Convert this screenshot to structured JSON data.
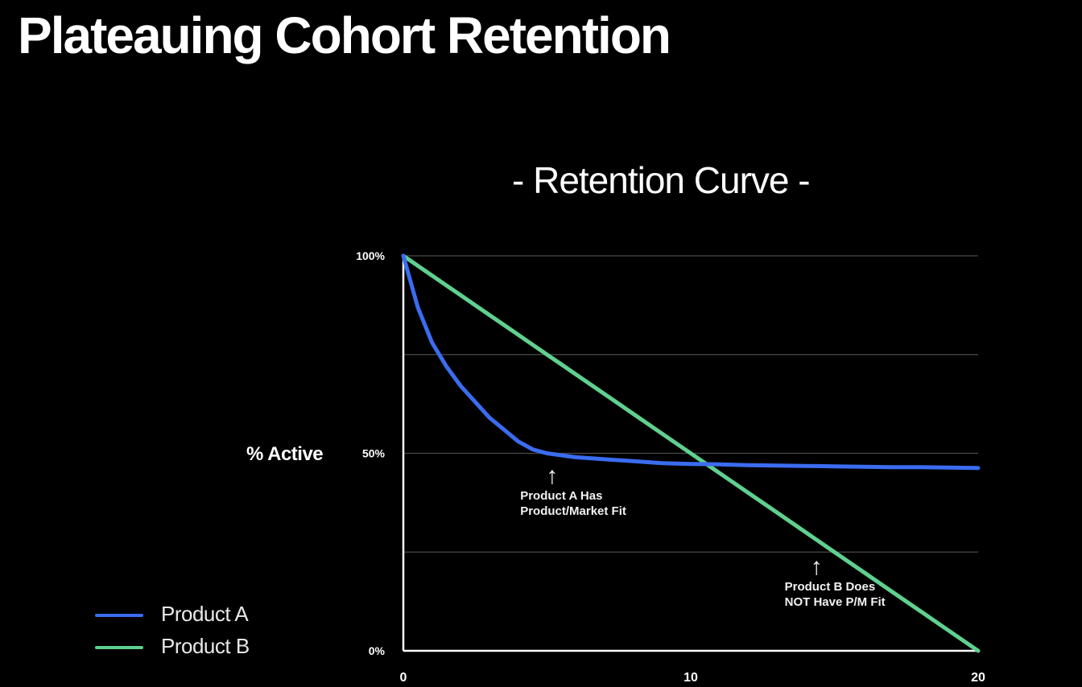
{
  "page": {
    "title": "Plateauing Cohort Retention"
  },
  "chart_data": {
    "type": "line",
    "title": "- Retention Curve -",
    "xlabel": "",
    "ylabel": "% Active",
    "xlim": [
      0,
      20
    ],
    "ylim": [
      0,
      100
    ],
    "x_ticks": [
      "0",
      "10",
      "20"
    ],
    "y_ticks": [
      {
        "value": 100,
        "label": "100%"
      },
      {
        "value": 75,
        "label": ""
      },
      {
        "value": 50,
        "label": "50%"
      },
      {
        "value": 25,
        "label": ""
      },
      {
        "value": 0,
        "label": "0%"
      }
    ],
    "grid": true,
    "legend_position": "bottom-left",
    "x": [
      0,
      0.5,
      1,
      1.5,
      2,
      2.5,
      3,
      3.5,
      4,
      4.5,
      5,
      5.5,
      6,
      7,
      8,
      9,
      10,
      11,
      12,
      13,
      14,
      15,
      16,
      17,
      18,
      19,
      20
    ],
    "series": [
      {
        "name": "Product A",
        "color": "#3b6cf0",
        "values": [
          100,
          87,
          78,
          72,
          67,
          63,
          59,
          56,
          53,
          51,
          50,
          49.5,
          49,
          48.5,
          48,
          47.5,
          47.3,
          47.2,
          47,
          46.9,
          46.8,
          46.7,
          46.6,
          46.5,
          46.5,
          46.4,
          46.3
        ]
      },
      {
        "name": "Product B",
        "color": "#5fd08f",
        "values": [
          100,
          97.5,
          95,
          92.5,
          90,
          87.5,
          85,
          82.5,
          80,
          77.5,
          75,
          72.5,
          70,
          65,
          60,
          55,
          50,
          45,
          40,
          35,
          30,
          25,
          20,
          15,
          10,
          5,
          0
        ]
      }
    ],
    "annotations": [
      {
        "x": 5.3,
        "y": 46,
        "text": "Product A Has\nProduct/Market Fit"
      },
      {
        "x": 14.5,
        "y": 23,
        "text": "Product B Does\nNOT Have P/M Fit"
      }
    ]
  }
}
